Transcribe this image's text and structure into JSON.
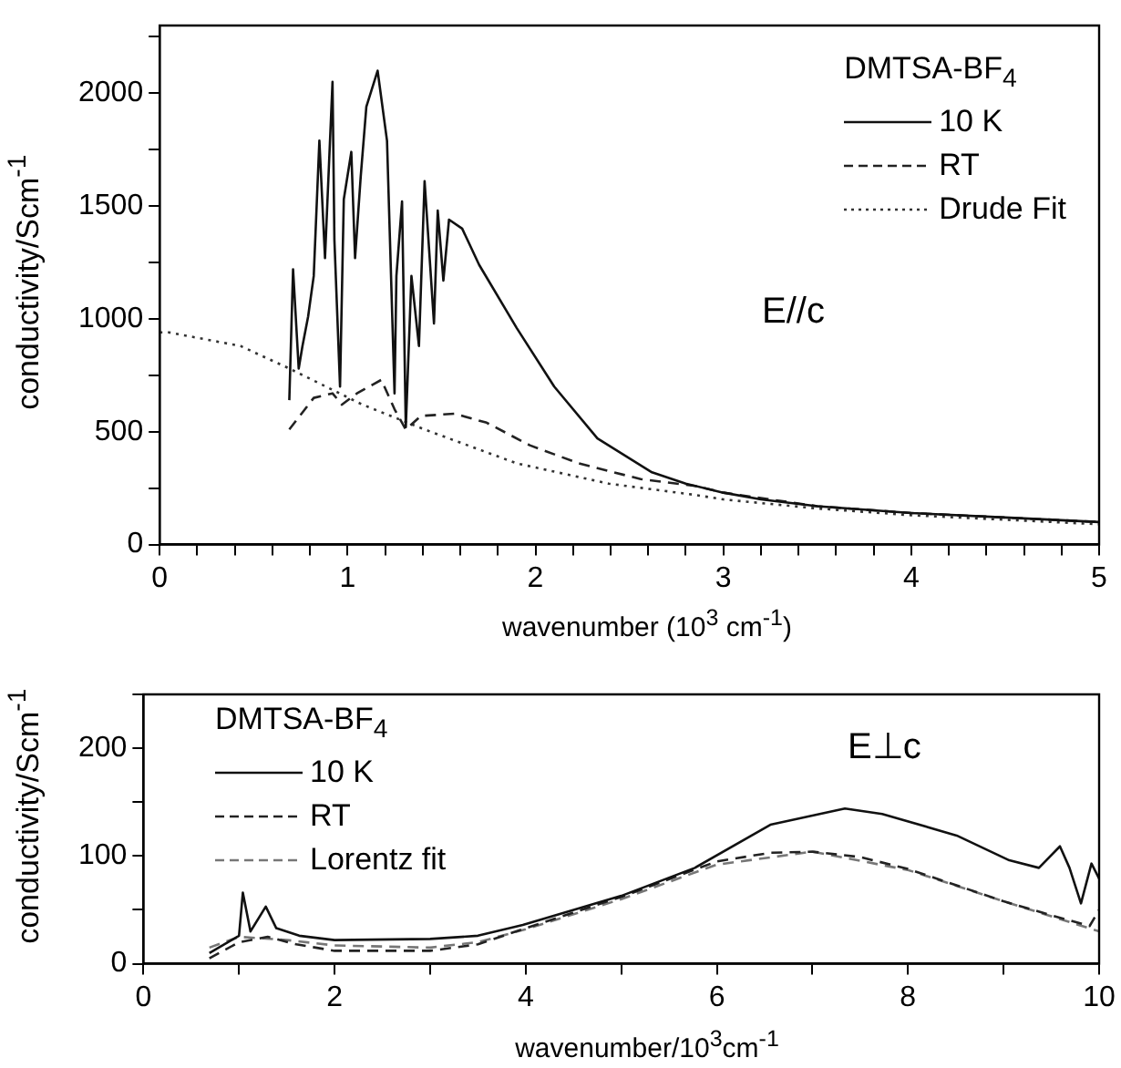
{
  "chart_data": [
    {
      "type": "line",
      "xlabel": "wavenumber (10$^{3}$ cm$^{-1}$)",
      "ylabel": "conductivity/Scm$^{-1}$",
      "legend_title": "DMTSA-BF$_{4}$",
      "legend": "top right",
      "grid": false,
      "marker": "none",
      "annotations": [
        "E//c"
      ],
      "xlim": [
        0,
        5
      ],
      "ylim": [
        0,
        2300
      ],
      "xticks": [
        0,
        {
          "value": 0.2,
          "label": null
        },
        {
          "value": 0.4,
          "label": null
        },
        {
          "value": 0.6,
          "label": null
        },
        {
          "value": 0.8,
          "label": null
        },
        1,
        {
          "value": 1.2,
          "label": null
        },
        {
          "value": 1.4,
          "label": null
        },
        {
          "value": 1.6,
          "label": null
        },
        {
          "value": 1.8,
          "label": null
        },
        2,
        {
          "value": 2.2,
          "label": null
        },
        {
          "value": 2.4,
          "label": null
        },
        {
          "value": 2.6,
          "label": null
        },
        {
          "value": 2.8,
          "label": null
        },
        3,
        {
          "value": 3.2,
          "label": null
        },
        {
          "value": 3.4,
          "label": null
        },
        {
          "value": 3.6,
          "label": null
        },
        {
          "value": 3.8,
          "label": null
        },
        4,
        {
          "value": 4.2,
          "label": null
        },
        {
          "value": 4.4,
          "label": null
        },
        {
          "value": 4.6,
          "label": null
        },
        {
          "value": 4.8,
          "label": null
        },
        5
      ],
      "yticks": [
        0,
        {
          "value": 250,
          "label": null
        },
        500,
        {
          "value": 750,
          "label": null
        },
        1000,
        {
          "value": 1250,
          "label": null
        },
        1500,
        {
          "value": 1750,
          "label": null
        },
        2000,
        {
          "value": 2250,
          "label": null
        }
      ],
      "series": [
        {
          "name": "10 K",
          "color": "#111111",
          "line_style": "solid",
          "x": [
            0.69,
            0.71,
            0.74,
            0.76,
            0.79,
            0.82,
            0.85,
            0.88,
            0.92,
            0.93,
            0.96,
            0.98,
            1.02,
            1.04,
            1.07,
            1.1,
            1.13,
            1.16,
            1.21,
            1.25,
            1.26,
            1.29,
            1.31,
            1.34,
            1.38,
            1.41,
            1.46,
            1.48,
            1.51,
            1.54,
            1.61,
            1.7,
            1.9,
            2.1,
            2.33,
            2.62,
            2.8,
            3.0,
            3.2,
            3.5,
            4.0,
            4.5,
            5.0
          ],
          "values": [
            640,
            1220,
            780,
            880,
            1010,
            1190,
            1790,
            1270,
            2050,
            1350,
            700,
            1530,
            1740,
            1270,
            1630,
            1940,
            2020,
            2100,
            1790,
            670,
            1190,
            1520,
            520,
            1190,
            880,
            1610,
            980,
            1480,
            1170,
            1440,
            1400,
            1240,
            960,
            700,
            470,
            320,
            270,
            230,
            200,
            170,
            140,
            120,
            100
          ]
        },
        {
          "name": "RT",
          "color": "#222222",
          "line_style": "dashed",
          "x": [
            0.69,
            0.82,
            0.92,
            0.97,
            1.05,
            1.18,
            1.25,
            1.31,
            1.39,
            1.57,
            1.74,
            1.97,
            2.23,
            2.56,
            2.85,
            3.0,
            3.5,
            4.0,
            4.5,
            5.0
          ],
          "values": [
            510,
            650,
            670,
            620,
            670,
            730,
            600,
            510,
            570,
            580,
            540,
            440,
            360,
            290,
            260,
            230,
            170,
            140,
            120,
            100
          ]
        },
        {
          "name": "Drude Fit",
          "color": "#333333",
          "line_style": "dotted",
          "x": [
            0.0,
            0.05,
            0.43,
            0.69,
            1.08,
            1.41,
            1.9,
            2.39,
            2.85,
            3.0,
            3.5,
            4.0,
            4.5,
            5.0
          ],
          "values": [
            940,
            940,
            880,
            780,
            620,
            510,
            360,
            270,
            220,
            200,
            160,
            130,
            110,
            90
          ]
        }
      ]
    },
    {
      "type": "line",
      "xlabel": "wavenumber/10$^{3}$cm$^{-1}$",
      "ylabel": "conductivity/Scm$^{-1}$",
      "legend_title": "DMTSA-BF$_{4}$",
      "legend": "top left",
      "grid": false,
      "marker": "none",
      "annotations": [
        "E⊥c"
      ],
      "xlim": [
        0,
        10
      ],
      "ylim": [
        0,
        250
      ],
      "xticks": [
        0,
        {
          "value": 1,
          "label": null
        },
        2,
        {
          "value": 3,
          "label": null
        },
        4,
        {
          "value": 5,
          "label": null
        },
        6,
        {
          "value": 7,
          "label": null
        },
        8,
        {
          "value": 9,
          "label": null
        },
        10
      ],
      "yticks": [
        0,
        {
          "value": 50,
          "label": null
        },
        100,
        {
          "value": 150,
          "label": null
        },
        200,
        {
          "value": 250,
          "label": null
        }
      ],
      "series": [
        {
          "name": "10 K",
          "color": "#111111",
          "line_style": "solid",
          "x": [
            0.69,
            1.0,
            1.04,
            1.12,
            1.28,
            1.39,
            1.63,
            2.0,
            3.0,
            3.5,
            3.97,
            5.0,
            5.77,
            6.56,
            7.34,
            7.73,
            8.51,
            9.06,
            9.37,
            9.59,
            9.69,
            9.81,
            9.92,
            10.0
          ],
          "values": [
            10,
            26,
            66,
            30,
            53,
            33,
            26,
            22,
            23,
            26,
            36,
            63,
            89,
            129,
            144,
            139,
            119,
            96,
            89,
            109,
            89,
            56,
            93,
            79
          ]
        },
        {
          "name": "RT",
          "color": "#222222",
          "line_style": "dashed",
          "x": [
            0.69,
            1.0,
            1.3,
            1.6,
            2.0,
            3.0,
            3.5,
            4.0,
            5.0,
            6.0,
            6.56,
            7.0,
            7.5,
            8.0,
            8.5,
            9.0,
            9.5,
            9.9,
            10.0
          ],
          "values": [
            5,
            20,
            25,
            18,
            12,
            12,
            18,
            33,
            62,
            95,
            103,
            104,
            99,
            88,
            73,
            58,
            45,
            35,
            50
          ]
        },
        {
          "name": "Lorentz fit",
          "color": "#777777",
          "line_style": "dashed",
          "x": [
            0.69,
            1.0,
            1.5,
            2.0,
            3.0,
            3.5,
            4.0,
            5.0,
            6.0,
            7.0,
            8.0,
            9.0,
            10.0
          ],
          "values": [
            15,
            25,
            22,
            17,
            15,
            20,
            32,
            60,
            92,
            104,
            87,
            58,
            30
          ]
        }
      ]
    }
  ]
}
